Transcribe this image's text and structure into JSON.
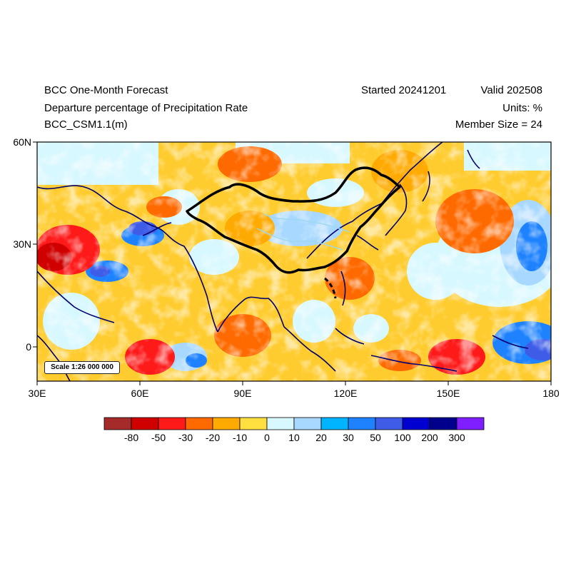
{
  "header": {
    "title": "BCC One-Month Forecast",
    "subtitle": "Departure percentage of Precipitation Rate",
    "model": "BCC_CSM1.1(m)",
    "started": "Started 20241201",
    "valid": "Valid 202508",
    "units": "Units: %",
    "members": "Member Size = 24"
  },
  "axes": {
    "lat_labels": [
      "60N",
      "30N",
      "0"
    ],
    "lon_labels": [
      "30E",
      "60E",
      "90E",
      "120E",
      "150E",
      "180"
    ]
  },
  "scale_label": "Scale 1:26 000 000",
  "colorbar": {
    "colors": [
      "#a52a2a",
      "#d00000",
      "#ff1a1a",
      "#ff6a00",
      "#ffaa00",
      "#ffe040",
      "#d8f8ff",
      "#a8d8ff",
      "#00b4ff",
      "#1e82ff",
      "#3f5ce8",
      "#0000d0",
      "#00008c",
      "#7f1fff"
    ],
    "labels": [
      "-80",
      "-50",
      "-30",
      "-20",
      "-10",
      "0",
      "10",
      "20",
      "30",
      "50",
      "100",
      "200",
      "300"
    ]
  }
}
